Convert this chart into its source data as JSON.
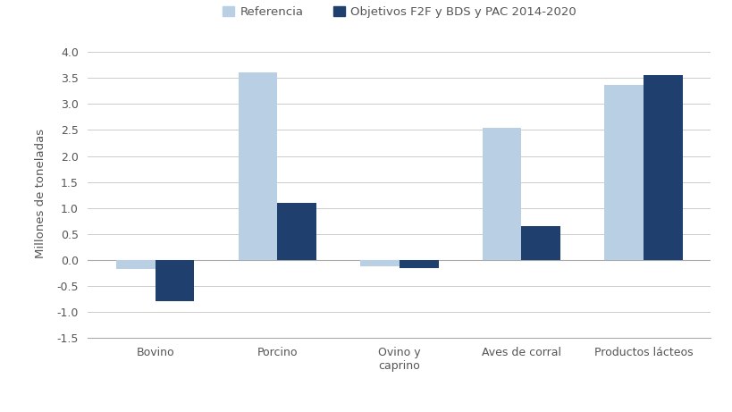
{
  "categories": [
    "Bovino",
    "Porcino",
    "Ovino y\ncaprino",
    "Aves de corral",
    "Productos lácteos"
  ],
  "referencia": [
    -0.17,
    3.6,
    -0.12,
    2.55,
    3.37
  ],
  "objetivos": [
    -0.8,
    1.1,
    -0.15,
    0.65,
    3.55
  ],
  "color_referencia": "#b8cfe4",
  "color_objetivos": "#1f3f6e",
  "ylabel": "Millones de toneladas",
  "ylim": [
    -1.5,
    4.05
  ],
  "yticks": [
    -1.5,
    -1.0,
    -0.5,
    0.0,
    0.5,
    1.0,
    1.5,
    2.0,
    2.5,
    3.0,
    3.5,
    4.0
  ],
  "legend_referencia": "Referencia",
  "legend_objetivos": "Objetivos F2F y BDS y PAC 2014-2020",
  "bar_width": 0.32,
  "background_color": "#ffffff",
  "grid_color": "#cccccc",
  "spine_color": "#aaaaaa"
}
